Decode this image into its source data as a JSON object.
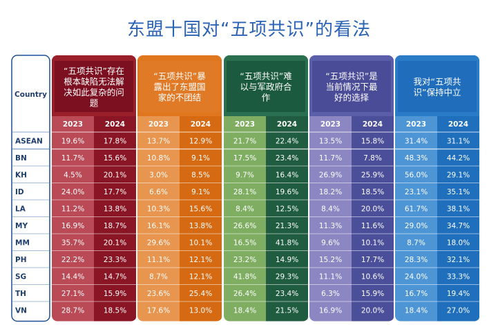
{
  "title": "东盟十国对“五项共识”的看法",
  "chart_data": {
    "type": "table",
    "row_header_label": "Country",
    "years": [
      "2023",
      "2024"
    ],
    "groups": [
      {
        "label_lines": [
          "“五项共识”存在",
          "根本缺陷无法解",
          "决如此复杂的问",
          "题"
        ],
        "color": "#9b1f2b",
        "dark": "#8a1524",
        "light": "#b94a56",
        "header_bg": "#7d1020"
      },
      {
        "label_lines": [
          "“五项共识”暴",
          "露出了东盟国",
          "家的不团结"
        ],
        "color": "#e0761e",
        "dark": "#d66a12",
        "light": "#e8954f",
        "header_bg": "#e07a26"
      },
      {
        "label_lines": [
          "“五项共识”难",
          "以与军政府合",
          "作"
        ],
        "color": "#2a6f50",
        "dark": "#1f5c40",
        "light": "#7fae63",
        "header_bg": "#1b5a3e"
      },
      {
        "label_lines": [
          "“五项共识”是",
          "当前情况下最",
          "好的选择"
        ],
        "color": "#5b5ea9",
        "dark": "#4b4e99",
        "light": "#8c86c2",
        "header_bg": "#4a4c98"
      },
      {
        "label_lines": [
          "我对“五项共",
          "识”保持中立"
        ],
        "color": "#2b7cc7",
        "dark": "#1f6fbd",
        "light": "#4e95d6",
        "header_bg": "#1f6dbb"
      }
    ],
    "rows": [
      {
        "country": "ASEAN",
        "values": [
          "19.6%",
          "17.8%",
          "13.7%",
          "12.9%",
          "21.7%",
          "22.4%",
          "13.5%",
          "15.8%",
          "31.4%",
          "31.1%"
        ]
      },
      {
        "country": "BN",
        "values": [
          "11.7%",
          "15.6%",
          "10.8%",
          "9.1%",
          "17.5%",
          "23.4%",
          "11.7%",
          "7.8%",
          "48.3%",
          "44.2%"
        ]
      },
      {
        "country": "KH",
        "values": [
          "4.5%",
          "20.1%",
          "3.0%",
          "8.5%",
          "9.7%",
          "16.4%",
          "26.9%",
          "25.9%",
          "56.0%",
          "29.1%"
        ]
      },
      {
        "country": "ID",
        "values": [
          "24.0%",
          "17.7%",
          "6.6%",
          "9.1%",
          "28.1%",
          "19.6%",
          "18.2%",
          "18.5%",
          "23.1%",
          "35.1%"
        ]
      },
      {
        "country": "LA",
        "values": [
          "11.2%",
          "13.8%",
          "10.3%",
          "15.6%",
          "8.4%",
          "12.5%",
          "8.4%",
          "20.0%",
          "61.7%",
          "38.1%"
        ]
      },
      {
        "country": "MY",
        "values": [
          "16.9%",
          "18.7%",
          "16.1%",
          "13.8%",
          "26.6%",
          "21.3%",
          "11.3%",
          "11.6%",
          "29.0%",
          "34.7%"
        ]
      },
      {
        "country": "MM",
        "values": [
          "35.7%",
          "20.1%",
          "29.6%",
          "10.1%",
          "16.5%",
          "41.8%",
          "9.6%",
          "10.1%",
          "8.7%",
          "18.0%"
        ]
      },
      {
        "country": "PH",
        "values": [
          "22.2%",
          "23.3%",
          "11.1%",
          "12.1%",
          "23.2%",
          "14.9%",
          "15.2%",
          "17.7%",
          "28.3%",
          "32.1%"
        ]
      },
      {
        "country": "SG",
        "values": [
          "14.4%",
          "14.7%",
          "8.7%",
          "12.1%",
          "41.8%",
          "29.3%",
          "11.1%",
          "10.6%",
          "24.0%",
          "33.3%"
        ]
      },
      {
        "country": "TH",
        "values": [
          "27.1%",
          "15.9%",
          "23.6%",
          "25.4%",
          "26.4%",
          "23.4%",
          "6.3%",
          "15.9%",
          "16.7%",
          "19.4%"
        ]
      },
      {
        "country": "VN",
        "values": [
          "28.7%",
          "18.5%",
          "17.6%",
          "13.0%",
          "18.4%",
          "21.5%",
          "16.9%",
          "20.0%",
          "18.4%",
          "27.0%"
        ]
      }
    ]
  }
}
